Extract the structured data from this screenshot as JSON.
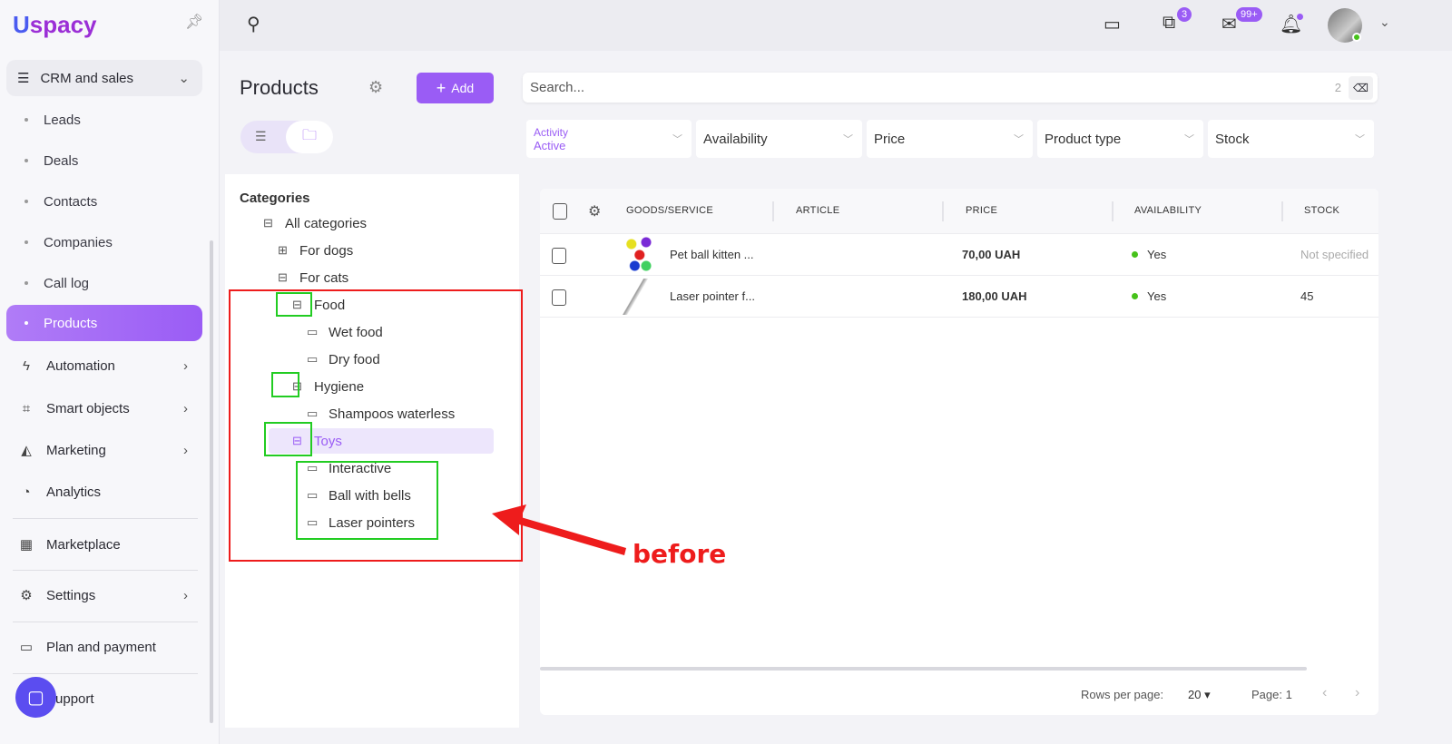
{
  "brand": {
    "logo": "Uspacy"
  },
  "sidebar": {
    "group": {
      "label": "CRM and sales",
      "icon": "funnel-icon"
    },
    "sub_items": [
      {
        "label": "Leads"
      },
      {
        "label": "Deals"
      },
      {
        "label": "Contacts"
      },
      {
        "label": "Companies"
      },
      {
        "label": "Call log"
      },
      {
        "label": "Products",
        "active": true
      }
    ],
    "items": [
      {
        "label": "Automation",
        "icon": "lightning-icon"
      },
      {
        "label": "Smart objects",
        "icon": "smart-object-icon"
      },
      {
        "label": "Marketing",
        "icon": "megaphone-icon"
      },
      {
        "label": "Analytics",
        "icon": "chart-icon"
      },
      {
        "label": "Marketplace",
        "icon": "store-icon"
      },
      {
        "label": "Settings",
        "icon": "gear-icon"
      },
      {
        "label": "Plan and payment",
        "icon": "wallet-icon"
      },
      {
        "label": "Support",
        "icon": "support-icon"
      }
    ]
  },
  "topbar": {
    "chat_badge": "3",
    "mail_badge": "99+"
  },
  "page": {
    "title": "Products",
    "add_label": "Add"
  },
  "search": {
    "placeholder": "Search...",
    "count": "2"
  },
  "filters": [
    {
      "label": "Activity",
      "value": "Active"
    },
    {
      "label": "Availability"
    },
    {
      "label": "Price"
    },
    {
      "label": "Product type"
    },
    {
      "label": "Stock"
    }
  ],
  "categories": {
    "heading": "Categories",
    "items": [
      {
        "label": "All categories",
        "level": 0
      },
      {
        "label": "For dogs",
        "level": 1
      },
      {
        "label": "For cats",
        "level": 1
      },
      {
        "label": "Food",
        "level": 2
      },
      {
        "label": "Wet food",
        "level": 3
      },
      {
        "label": "Dry food",
        "level": 3
      },
      {
        "label": "Hygiene",
        "level": 2
      },
      {
        "label": "Shampoos waterless",
        "level": 3
      },
      {
        "label": "Toys",
        "level": 2,
        "selected": true
      },
      {
        "label": "Interactive",
        "level": 3
      },
      {
        "label": "Ball with bells",
        "level": 3
      },
      {
        "label": "Laser pointers",
        "level": 3
      }
    ]
  },
  "table": {
    "columns": [
      "GOODS/SERVICE",
      "ARTICLE",
      "PRICE",
      "AVAILABILITY",
      "STOCK"
    ],
    "rows": [
      {
        "name": "Pet ball kitten ...",
        "article": "",
        "price": "70,00 UAH",
        "availability": "Yes",
        "stock": "Not specified"
      },
      {
        "name": "Laser pointer f...",
        "article": "",
        "price": "180,00 UAH",
        "availability": "Yes",
        "stock": "45"
      }
    ],
    "rows_per_page_label": "Rows per page:",
    "rows_per_page": "20",
    "page_label": "Page: 1"
  },
  "annotation": {
    "text": "before",
    "color": "#ee1c1c",
    "highlight_color": "#22cc22"
  },
  "colors": {
    "accent": "#9a5cf5"
  }
}
